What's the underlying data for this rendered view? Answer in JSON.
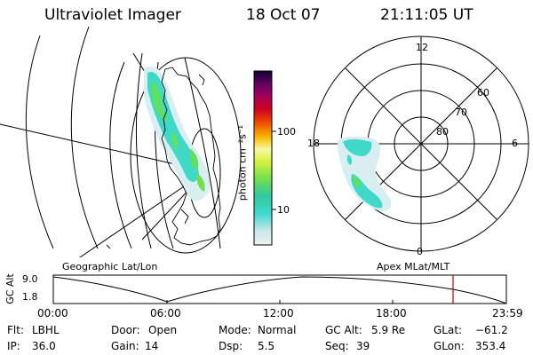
{
  "header": {
    "title": "Ultraviolet Imager",
    "date": "18 Oct 07",
    "time": "21:11:05 UT"
  },
  "colorbar": {
    "label": "photon cm⁻²s⁻¹",
    "tick_labels": [
      "100",
      "10"
    ]
  },
  "polar": {
    "mlt_labels": [
      "12",
      "18",
      "6",
      "0"
    ],
    "lat_labels": [
      "60",
      "70",
      "80"
    ]
  },
  "captions": {
    "left": "Geographic Lat/Lon",
    "right": "Apex MLat/MLT"
  },
  "altplot": {
    "ylabel": "GC Alt",
    "y_ticks": [
      "9.0",
      "1.8"
    ],
    "x_ticks": [
      "00:00",
      "06:00",
      "12:00",
      "18:00",
      "23:59"
    ]
  },
  "info": {
    "row1": [
      {
        "key": "Flt:",
        "value": "LBHL"
      },
      {
        "key": "Door:",
        "value": "Open"
      },
      {
        "key": "Mode:",
        "value": "Normal"
      },
      {
        "key": "GC Alt:",
        "value": "5.9 Re"
      },
      {
        "key": "GLat:",
        "value": "−61.2"
      }
    ],
    "row2": [
      {
        "key": "IP:",
        "value": "36.0"
      },
      {
        "key": "Gain:",
        "value": "14"
      },
      {
        "key": "Dsp:",
        "value": "5.5"
      },
      {
        "key": "Seq:",
        "value": "39"
      },
      {
        "key": "GLon:",
        "value": "353.4"
      }
    ]
  },
  "colors": {
    "marker": "#cc0000",
    "aurora_low": "#d8eef0",
    "aurora_mid": "#30d8c8",
    "aurora_high": "#60e060"
  }
}
